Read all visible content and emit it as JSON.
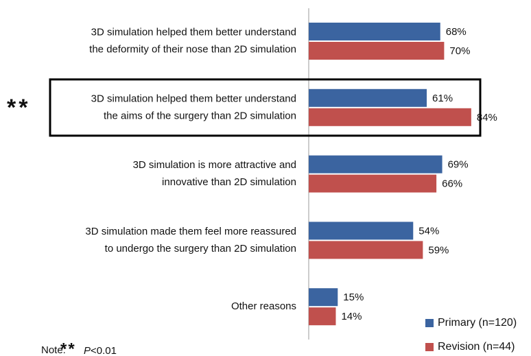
{
  "chart_data": {
    "type": "hbar",
    "categories": [
      [
        "3D simulation helped them better understand",
        "the deformity of their nose than 2D simulation"
      ],
      [
        "3D simulation helped them better understand",
        "the aims of the surgery than 2D simulation"
      ],
      [
        "3D simulation is more attractive and",
        "innovative than 2D simulation"
      ],
      [
        "3D simulation made them feel more reassured",
        "to undergo the surgery than 2D simulation"
      ],
      [
        "Other reasons"
      ]
    ],
    "series": [
      {
        "name": "Primary (n=120)",
        "color": "#3b64a0",
        "values": [
          68,
          61,
          69,
          54,
          15
        ],
        "value_labels": [
          "68%",
          "61%",
          "69%",
          "54%",
          "15%"
        ]
      },
      {
        "name": "Revision (n=44)",
        "color": "#c0504d",
        "values": [
          70,
          84,
          66,
          59,
          14
        ],
        "value_labels": [
          "70%",
          "84%",
          "66%",
          "59%",
          "14%"
        ]
      }
    ],
    "xlim": [
      0,
      100
    ],
    "highlight": {
      "index": 1,
      "marker": "**"
    },
    "note": {
      "prefix": "Note:",
      "marker": "**",
      "p": "P",
      "text": "<0.01"
    },
    "legend": "lower right"
  }
}
